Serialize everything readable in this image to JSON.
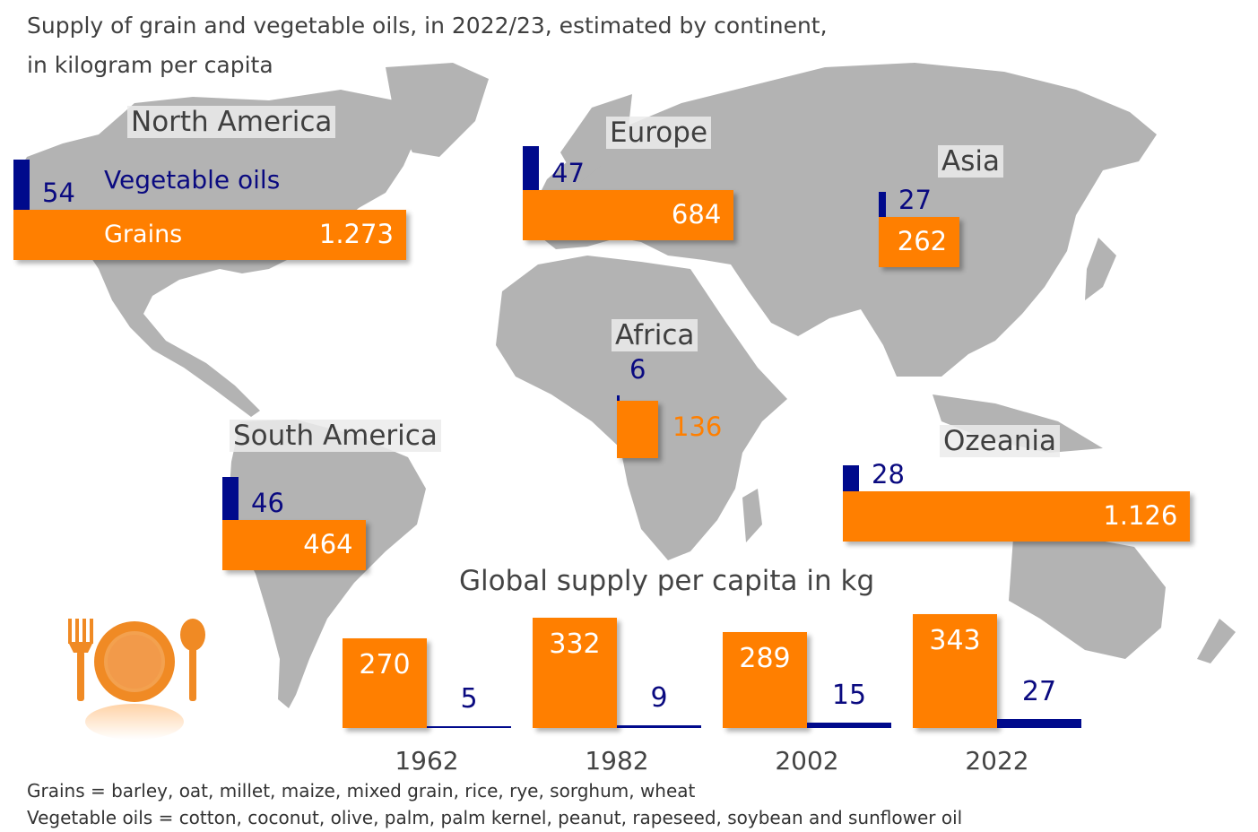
{
  "title_line1": "Supply of grain and vegetable oils, in 2022/23, estimated by continent,",
  "title_line2": "in kilogram per capita",
  "legend": {
    "oils_label": "Vegetable oils",
    "grains_label": "Grains"
  },
  "colors": {
    "grains": "#ff7f00",
    "vegetable_oils": "#000a8c",
    "map_land": "#b3b3b3"
  },
  "chart_data": [
    {
      "type": "bar",
      "categories": [
        "North America",
        "Europe",
        "Asia",
        "Africa",
        "South America",
        "Ozeania"
      ],
      "series": [
        {
          "name": "Vegetable oils",
          "values": [
            54,
            47,
            27,
            6,
            46,
            28
          ],
          "labels": [
            "54",
            "47",
            "27",
            "6",
            "46",
            "28"
          ]
        },
        {
          "name": "Grains",
          "values": [
            1273,
            684,
            262,
            136,
            464,
            1126
          ],
          "labels": [
            "1.273",
            "684",
            "262",
            "136",
            "464",
            "1.126"
          ]
        }
      ]
    },
    {
      "type": "bar",
      "title": "Global supply per capita in kg",
      "categories": [
        "1962",
        "1982",
        "2002",
        "2022"
      ],
      "series": [
        {
          "name": "Grains",
          "values": [
            270,
            332,
            289,
            343
          ],
          "labels": [
            "270",
            "332",
            "289",
            "343"
          ]
        },
        {
          "name": "Vegetable oils",
          "values": [
            5,
            9,
            15,
            27
          ],
          "labels": [
            "5",
            "9",
            "15",
            "27"
          ]
        }
      ]
    }
  ],
  "footnotes": {
    "grains": "Grains = barley, oat, millet, maize, mixed grain, rice, rye, sorghum, wheat",
    "oils": "Vegetable oils = cotton, coconut, olive, palm, palm kernel, peanut, rapeseed, soybean and sunflower oil"
  },
  "icon": "plate-cutlery-icon"
}
